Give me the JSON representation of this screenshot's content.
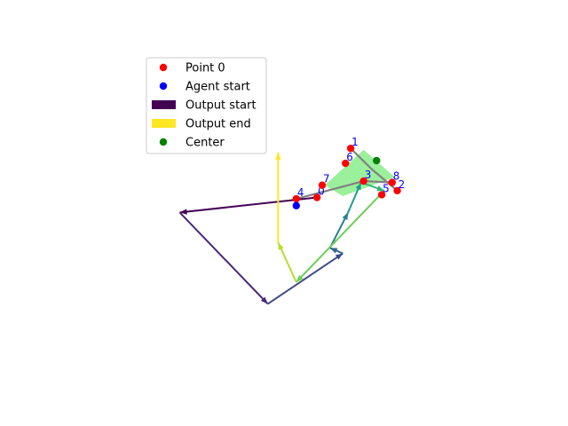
{
  "chart_data": {
    "type": "scatter",
    "title": "",
    "xlabel": "",
    "ylabel": "",
    "axes_visible": false,
    "grid": false,
    "xlim": [
      -5.0,
      12.0
    ],
    "ylim": [
      -14.0,
      10.0
    ],
    "legend": {
      "placement": "upper-left",
      "entries": [
        {
          "label": "Point 0",
          "kind": "marker",
          "color": "#ff0000"
        },
        {
          "label": "Agent start",
          "kind": "marker",
          "color": "#0000ff"
        },
        {
          "label": "Output start",
          "kind": "patch",
          "color": "#440154"
        },
        {
          "label": "Output end",
          "kind": "patch",
          "color": "#fde725"
        },
        {
          "label": "Center",
          "kind": "marker",
          "color": "#008000"
        }
      ]
    },
    "points": [
      {
        "label": "0",
        "x": 4.5,
        "y": -0.7
      },
      {
        "label": "1",
        "x": 5.8,
        "y": 2.9
      },
      {
        "label": "2",
        "x": 7.6,
        "y": -0.2
      },
      {
        "label": "3",
        "x": 6.3,
        "y": 0.5
      },
      {
        "label": "4",
        "x": 3.7,
        "y": -0.8
      },
      {
        "label": "5",
        "x": 7.0,
        "y": -0.5
      },
      {
        "label": "6",
        "x": 5.6,
        "y": 1.8
      },
      {
        "label": "7",
        "x": 4.7,
        "y": 0.2
      },
      {
        "label": "8",
        "x": 7.4,
        "y": 0.4
      }
    ],
    "agent_start": {
      "x": 3.7,
      "y": -1.3
    },
    "center": {
      "x": 6.8,
      "y": 2.0
    },
    "target_region": {
      "color": "#90ee90",
      "polygon": [
        [
          6.3,
          2.8
        ],
        [
          7.5,
          0.8
        ],
        [
          5.5,
          -0.6
        ],
        [
          4.8,
          0.2
        ]
      ]
    },
    "gray_segments": [
      {
        "x": [
          5.8,
          6.6
        ],
        "y": [
          2.9,
          1.4
        ]
      },
      {
        "x": [
          6.6,
          7.6
        ],
        "y": [
          1.4,
          -0.2
        ]
      },
      {
        "x": [
          3.7,
          6.3
        ],
        "y": [
          -0.8,
          0.5
        ]
      },
      {
        "x": [
          6.3,
          7.4
        ],
        "y": [
          0.5,
          0.4
        ]
      }
    ],
    "path_colormap": "viridis",
    "path": [
      {
        "x": 4.5,
        "y": -0.7
      },
      {
        "x": -0.8,
        "y": -1.8
      },
      {
        "x": 2.6,
        "y": -8.5
      },
      {
        "x": 5.5,
        "y": -4.8
      },
      {
        "x": 5.0,
        "y": -4.4
      },
      {
        "x": 5.7,
        "y": -1.8
      },
      {
        "x": 6.2,
        "y": 0.4
      },
      {
        "x": 7.1,
        "y": -0.2
      },
      {
        "x": 3.7,
        "y": -6.9
      },
      {
        "x": 3.0,
        "y": -4.0
      },
      {
        "x": 3.0,
        "y": 2.6
      }
    ]
  }
}
